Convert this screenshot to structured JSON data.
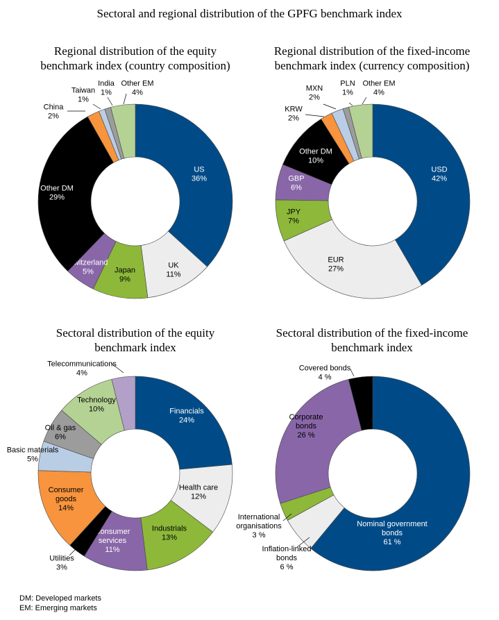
{
  "page_title": "Sectoral and regional distribution of the GPFG benchmark index",
  "footnotes": [
    "DM: Developed markets",
    "EM: Emerging markets"
  ],
  "chart_data": [
    {
      "type": "pie",
      "title": [
        "Regional distribution of the equity",
        "benchmark index (country composition)"
      ],
      "slices": [
        {
          "label": [
            "US",
            "36%"
          ],
          "value": 36,
          "color": "#004B87"
        },
        {
          "label": [
            "UK",
            "11%"
          ],
          "value": 11,
          "color": "#EDEDED"
        },
        {
          "label": [
            "Japan",
            "9%"
          ],
          "value": 9,
          "color": "#8DB83A"
        },
        {
          "label": [
            "Switzerland",
            "5%"
          ],
          "value": 5,
          "color": "#8966A8"
        },
        {
          "label": [
            "Other DM",
            "29%"
          ],
          "value": 29,
          "color": "#000000"
        },
        {
          "label": [
            "China",
            "2%"
          ],
          "value": 2,
          "color": "#F7943D"
        },
        {
          "label": [
            "Taiwan",
            "1%"
          ],
          "value": 1,
          "color": "#B9CDE5"
        },
        {
          "label": [
            "India",
            "1%"
          ],
          "value": 1,
          "color": "#9C9C9C"
        },
        {
          "label": [
            "Other EM",
            "4%"
          ],
          "value": 4,
          "color": "#B5D295"
        }
      ]
    },
    {
      "type": "pie",
      "title": [
        "Regional distribution of the fixed-income",
        "benchmark index (currency composition)"
      ],
      "slices": [
        {
          "label": [
            "USD",
            "42%"
          ],
          "value": 42,
          "color": "#004B87"
        },
        {
          "label": [
            "EUR",
            "27%"
          ],
          "value": 27,
          "color": "#EDEDED"
        },
        {
          "label": [
            "JPY",
            "7%"
          ],
          "value": 7,
          "color": "#8DB83A"
        },
        {
          "label": [
            "GBP",
            "6%"
          ],
          "value": 6,
          "color": "#8966A8"
        },
        {
          "label": [
            "Other DM",
            "10%"
          ],
          "value": 10,
          "color": "#000000"
        },
        {
          "label": [
            "KRW",
            "2%"
          ],
          "value": 2,
          "color": "#F7943D"
        },
        {
          "label": [
            "MXN",
            "2%"
          ],
          "value": 2,
          "color": "#B9CDE5"
        },
        {
          "label": [
            "PLN",
            "1%"
          ],
          "value": 1,
          "color": "#9C9C9C"
        },
        {
          "label": [
            "Other EM",
            "4%"
          ],
          "value": 4,
          "color": "#B5D295"
        }
      ]
    },
    {
      "type": "pie",
      "title": [
        "Sectoral distribution of the equity",
        "benchmark index"
      ],
      "slices": [
        {
          "label": [
            "Financials",
            "24%"
          ],
          "value": 24,
          "color": "#004B87"
        },
        {
          "label": [
            "Health care",
            "12%"
          ],
          "value": 12,
          "color": "#EDEDED"
        },
        {
          "label": [
            "Industrials",
            "13%"
          ],
          "value": 13,
          "color": "#8DB83A"
        },
        {
          "label": [
            "Consumer",
            "services",
            "11%"
          ],
          "value": 11,
          "color": "#8966A8"
        },
        {
          "label": [
            "Utilities",
            "3%"
          ],
          "value": 3,
          "color": "#000000"
        },
        {
          "label": [
            "Consumer",
            "goods",
            "14%"
          ],
          "value": 14,
          "color": "#F7943D"
        },
        {
          "label": [
            "Basic materials",
            "5%"
          ],
          "value": 5,
          "color": "#B9CDE5"
        },
        {
          "label": [
            "Oil & gas",
            "6%"
          ],
          "value": 6,
          "color": "#9C9C9C"
        },
        {
          "label": [
            "Technology",
            "10%"
          ],
          "value": 10,
          "color": "#B5D295"
        },
        {
          "label": [
            "Telecommunications",
            "4%"
          ],
          "value": 4,
          "color": "#B3A0C8"
        }
      ]
    },
    {
      "type": "pie",
      "title": [
        "Sectoral distribution of the fixed-income",
        "benchmark index"
      ],
      "slices": [
        {
          "label": [
            "Nominal government",
            "bonds",
            "61 %"
          ],
          "value": 61,
          "color": "#004B87"
        },
        {
          "label": [
            "Inflation-linked",
            "bonds",
            "6 %"
          ],
          "value": 6,
          "color": "#EDEDED"
        },
        {
          "label": [
            "International",
            "organisations",
            "3 %"
          ],
          "value": 3,
          "color": "#8DB83A"
        },
        {
          "label": [
            "Corporate",
            "bonds",
            "26 %"
          ],
          "value": 26,
          "color": "#8966A8"
        },
        {
          "label": [
            "Covered bonds",
            "4 %"
          ],
          "value": 4,
          "color": "#000000"
        }
      ]
    }
  ]
}
